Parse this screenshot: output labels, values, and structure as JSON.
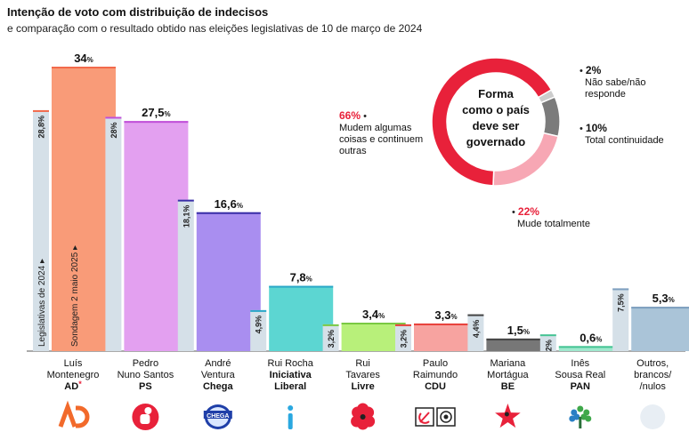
{
  "title": "Intenção de voto com distribuição de indecisos",
  "subtitle": "e comparação com o resultado obtido nas eleições legislativas de 10 de março de 2024",
  "chart_data": [
    {
      "type": "bar",
      "title": "Intenção de voto com distribuição de indecisos",
      "legend_prior": "Legislativas de 2024",
      "legend_current": "Sondagem 2 maio 2025",
      "series": [
        {
          "name": "Legislativas de 2024",
          "values": [
            28.8,
            28,
            18.1,
            4.9,
            3.2,
            3.2,
            4.4,
            2,
            7.5
          ],
          "labels": [
            "28,8%",
            "28%",
            "18,1%",
            "4,9%",
            "3,2%",
            "3,2%",
            "4,4%",
            "2%",
            "7,5%"
          ]
        },
        {
          "name": "Sondagem 2 maio 2025",
          "values": [
            34,
            27.5,
            16.6,
            7.8,
            3.4,
            3.3,
            1.5,
            0.6,
            5.3
          ],
          "labels": [
            "34",
            "27,5",
            "16,6",
            "7,8",
            "3,4",
            "3,3",
            "1,5",
            "0,6",
            "5,3"
          ]
        }
      ],
      "percent_suffix": "%",
      "parties": [
        {
          "leader": [
            "Luís",
            "Montenegro"
          ],
          "party": "AD",
          "mark": "*",
          "color": "#f99b78",
          "accent": "#f26a4b",
          "logo": "ad-logo"
        },
        {
          "leader": [
            "Pedro",
            "Nuno Santos"
          ],
          "party": "PS",
          "mark": "",
          "color": "#e3a0f0",
          "accent": "#c04fd8",
          "logo": "ps-fist-rose-logo"
        },
        {
          "leader": [
            "André",
            "Ventura"
          ],
          "party": "Chega",
          "mark": "",
          "color": "#a98ef0",
          "accent": "#3a2fa8",
          "logo": "chega-logo"
        },
        {
          "leader": [
            "Rui Rocha"
          ],
          "party": "Iniciativa Liberal",
          "partyLines": [
            "Iniciativa",
            "Liberal"
          ],
          "mark": "",
          "color": "#5cd6d2",
          "accent": "#2aa8c8",
          "logo": "il-logo"
        },
        {
          "leader": [
            "Rui",
            "Tavares"
          ],
          "party": "Livre",
          "mark": "",
          "color": "#b8f07a",
          "accent": "#7ac943",
          "logo": "livre-poppy-logo"
        },
        {
          "leader": [
            "Paulo",
            "Raimundo"
          ],
          "party": "CDU",
          "mark": "",
          "color": "#f7a3a0",
          "accent": "#e8403a",
          "logo": "cdu-logo"
        },
        {
          "leader": [
            "Mariana",
            "Mortágua"
          ],
          "party": "BE",
          "mark": "",
          "color": "#777777",
          "accent": "#444444",
          "logo": "be-star-logo"
        },
        {
          "leader": [
            "Inês",
            "Sousa Real"
          ],
          "party": "PAN",
          "mark": "",
          "color": "#9fe8cd",
          "accent": "#44c493",
          "logo": "pan-tree-logo"
        },
        {
          "leader": [
            "Outros,",
            "brancos/",
            "/nulos"
          ],
          "party": "",
          "mark": "",
          "color": "#aac4d8",
          "accent": "#7d9fbf",
          "logo": "circle-placeholder"
        }
      ]
    },
    {
      "type": "pie",
      "title": "Forma como o país deve ser governado",
      "center_lines": [
        "Forma",
        "como o país",
        "deve ser",
        "governado"
      ],
      "slices": [
        {
          "label_lines": [
            "Mudem algumas",
            "coisas e continuem",
            "outras"
          ],
          "value": 66,
          "text": "66%",
          "color": "#e8213a"
        },
        {
          "label_lines": [
            "Não sabe/não responde"
          ],
          "value": 2,
          "text": "2%",
          "color": "#cccccc"
        },
        {
          "label_lines": [
            "Total continuidade"
          ],
          "value": 10,
          "text": "10%",
          "color": "#7b7b7b"
        },
        {
          "label_lines": [
            "Mude totalmente"
          ],
          "value": 22,
          "text": "22%",
          "color": "#f7a7b4"
        }
      ]
    }
  ]
}
